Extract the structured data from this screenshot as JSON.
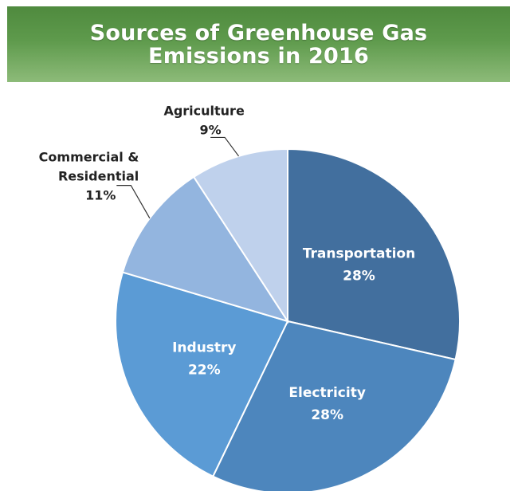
{
  "chart_data": {
    "type": "pie",
    "title_lines": [
      "Sources of Greenhouse Gas",
      "Emissions in 2016"
    ],
    "slices": [
      {
        "label": "Transportation",
        "label_lines": [
          "Transportation"
        ],
        "value": 28,
        "value_text": "28%",
        "color": "#426f9e",
        "label_position": "inside"
      },
      {
        "label": "Electricity",
        "label_lines": [
          "Electricity"
        ],
        "value": 28,
        "value_text": "28%",
        "color": "#4d86bd",
        "label_position": "inside"
      },
      {
        "label": "Industry",
        "label_lines": [
          "Industry"
        ],
        "value": 22,
        "value_text": "22%",
        "color": "#5b9bd5",
        "label_position": "inside"
      },
      {
        "label": "Commercial & Residential",
        "label_lines": [
          "Commercial &",
          "Residential"
        ],
        "value": 11,
        "value_text": "11%",
        "color": "#93b5df",
        "label_position": "outside"
      },
      {
        "label": "Agriculture",
        "label_lines": [
          "Agriculture"
        ],
        "value": 9,
        "value_text": "9%",
        "color": "#bfd1ec",
        "label_position": "outside"
      }
    ],
    "start_angle": "12 o'clock",
    "direction": "clockwise",
    "colors": {
      "title_banner": "#5e9a4c",
      "title_text": "#ffffff",
      "inside_label": "#ffffff",
      "outside_label": "#222222",
      "slice_border": "#ffffff"
    }
  }
}
